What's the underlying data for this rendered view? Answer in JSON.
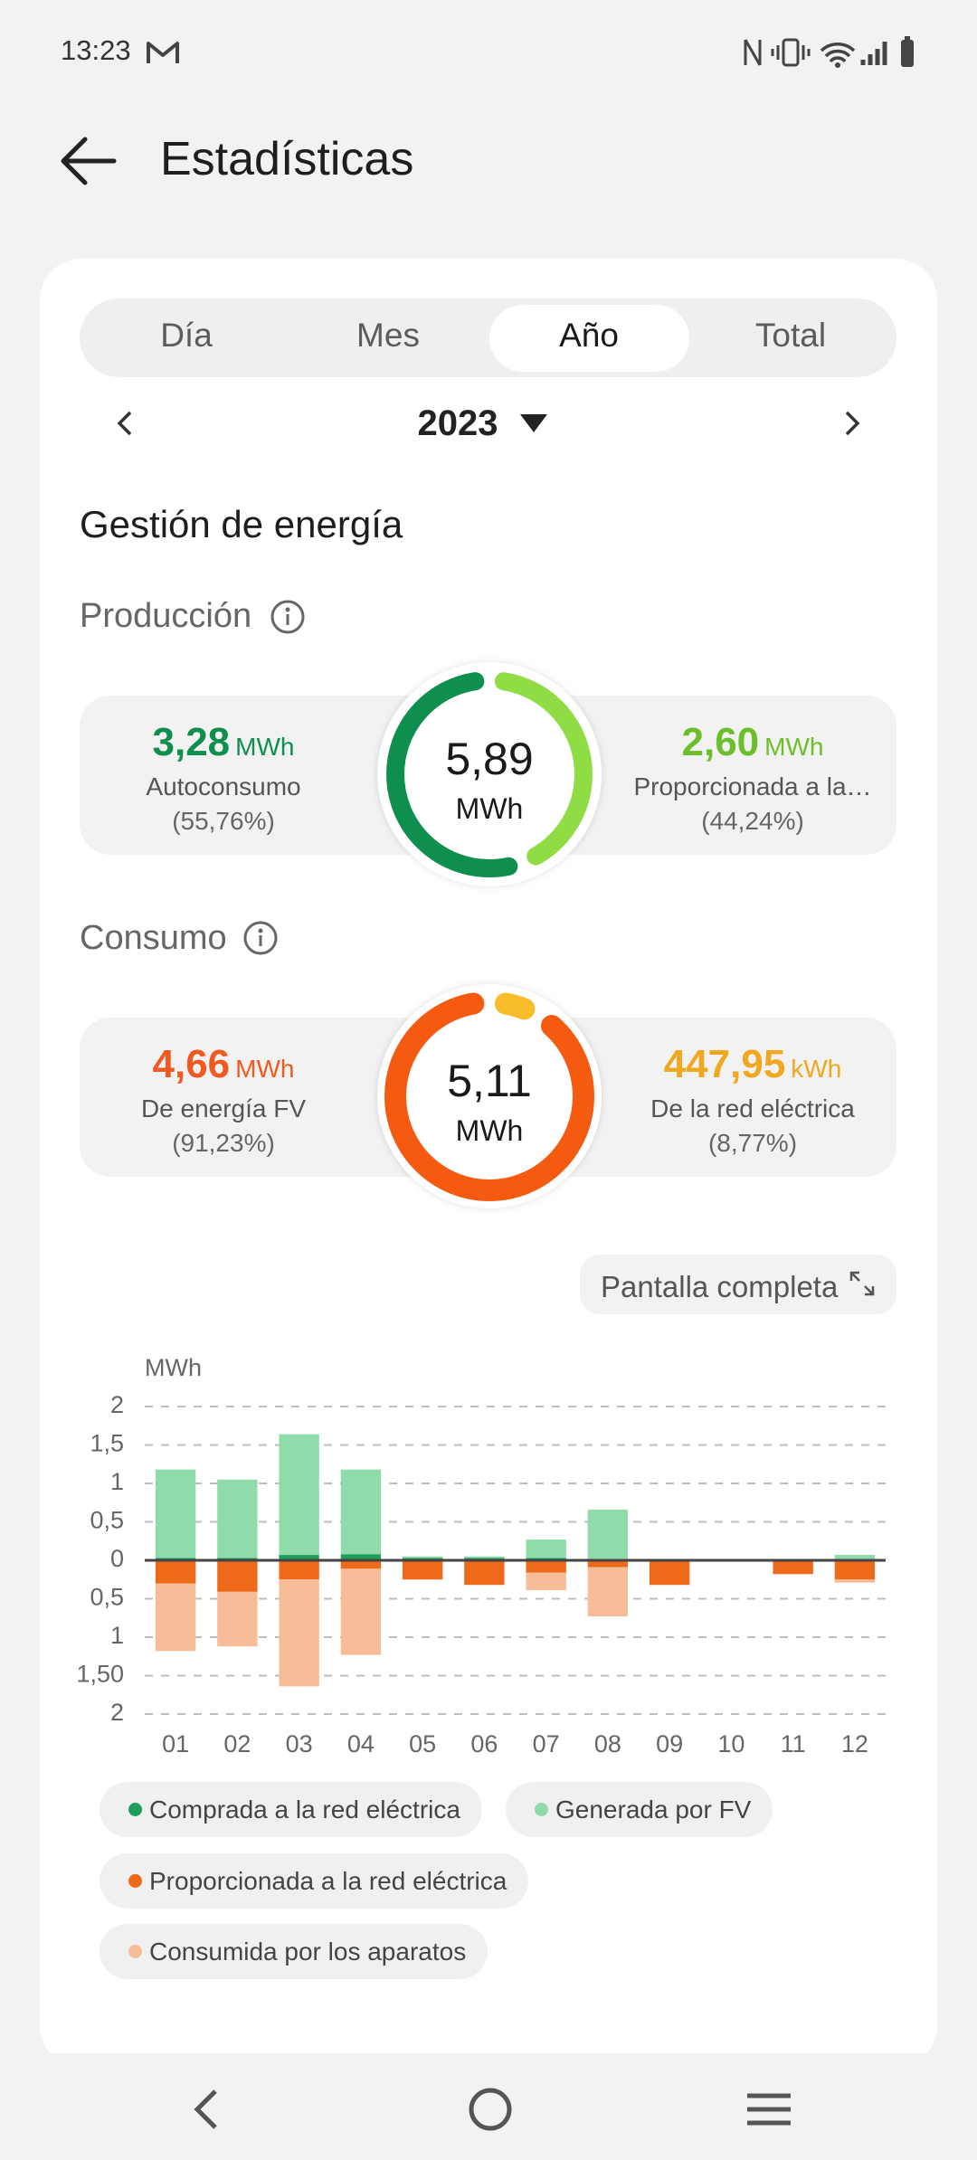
{
  "status_bar": {
    "time": "13:23"
  },
  "header": {
    "title": "Estadísticas"
  },
  "tabs": [
    "Día",
    "Mes",
    "Año",
    "Total"
  ],
  "period": {
    "year": "2023"
  },
  "section_title": "Gestión de energía",
  "production": {
    "title": "Producción",
    "total": "5,89",
    "total_unit": "MWh",
    "items": [
      {
        "value": "3,28",
        "unit": "MWh",
        "label": "Autoconsumo",
        "percent": "(55,76%)",
        "color": "#0f8f4e"
      },
      {
        "value": "2,60",
        "unit": "MWh",
        "label": "Proporcionada a la…",
        "percent": "(44,24%)",
        "color": "#8fdc45"
      }
    ]
  },
  "consumption": {
    "title": "Consumo",
    "total": "5,11",
    "total_unit": "MWh",
    "items": [
      {
        "value": "4,66",
        "unit": "MWh",
        "label": "De energía FV",
        "percent": "(91,23%)",
        "color": "#f45a10"
      },
      {
        "value": "447,95",
        "unit": "kWh",
        "label": "De la red eléctrica",
        "percent": "(8,77%)",
        "color": "#f7bd2b"
      }
    ]
  },
  "fullscreen_button": "Pantalla completa",
  "chart_data": {
    "type": "bar",
    "stacked": true,
    "y_label": "MWh",
    "categories": [
      "01",
      "02",
      "03",
      "04",
      "05",
      "06",
      "07",
      "08",
      "09",
      "10",
      "11",
      "12"
    ],
    "series": [
      {
        "name": "Comprada a la red eléctrica",
        "color": "#1e9e5a",
        "values": [
          0.03,
          0.03,
          0.07,
          0.08,
          0.03,
          0.03,
          0.03,
          0.02,
          0,
          0,
          0,
          0.02
        ]
      },
      {
        "name": "Generada por FV",
        "color": "#8fdcaa",
        "values": [
          1.15,
          1.02,
          1.57,
          1.1,
          0.02,
          0.02,
          0.24,
          0.64,
          0,
          0,
          0,
          0.05
        ]
      },
      {
        "name": "Proporcionada a la red eléctrica",
        "color": "#ee6a1a",
        "values": [
          -0.3,
          -0.41,
          -0.25,
          -0.11,
          -0.25,
          -0.32,
          -0.16,
          -0.09,
          -0.32,
          0,
          -0.18,
          -0.25
        ]
      },
      {
        "name": "Consumida por los aparatos",
        "color": "#f7bc98",
        "values": [
          -0.88,
          -0.71,
          -1.39,
          -1.12,
          0,
          0,
          -0.23,
          -0.64,
          0,
          0,
          0,
          -0.04
        ]
      }
    ],
    "ylim": [
      -2,
      2
    ],
    "yticks": [
      2,
      {
        "value": 1.5,
        "label": "1,5"
      },
      1,
      {
        "value": 0.5,
        "label": "0,5"
      },
      0,
      {
        "value": -0.5,
        "label": "0,5"
      },
      {
        "value": -1,
        "label": "1"
      },
      {
        "value": -1.5,
        "label": "1,50"
      },
      {
        "value": -2,
        "label": "2"
      }
    ],
    "grid": true
  }
}
